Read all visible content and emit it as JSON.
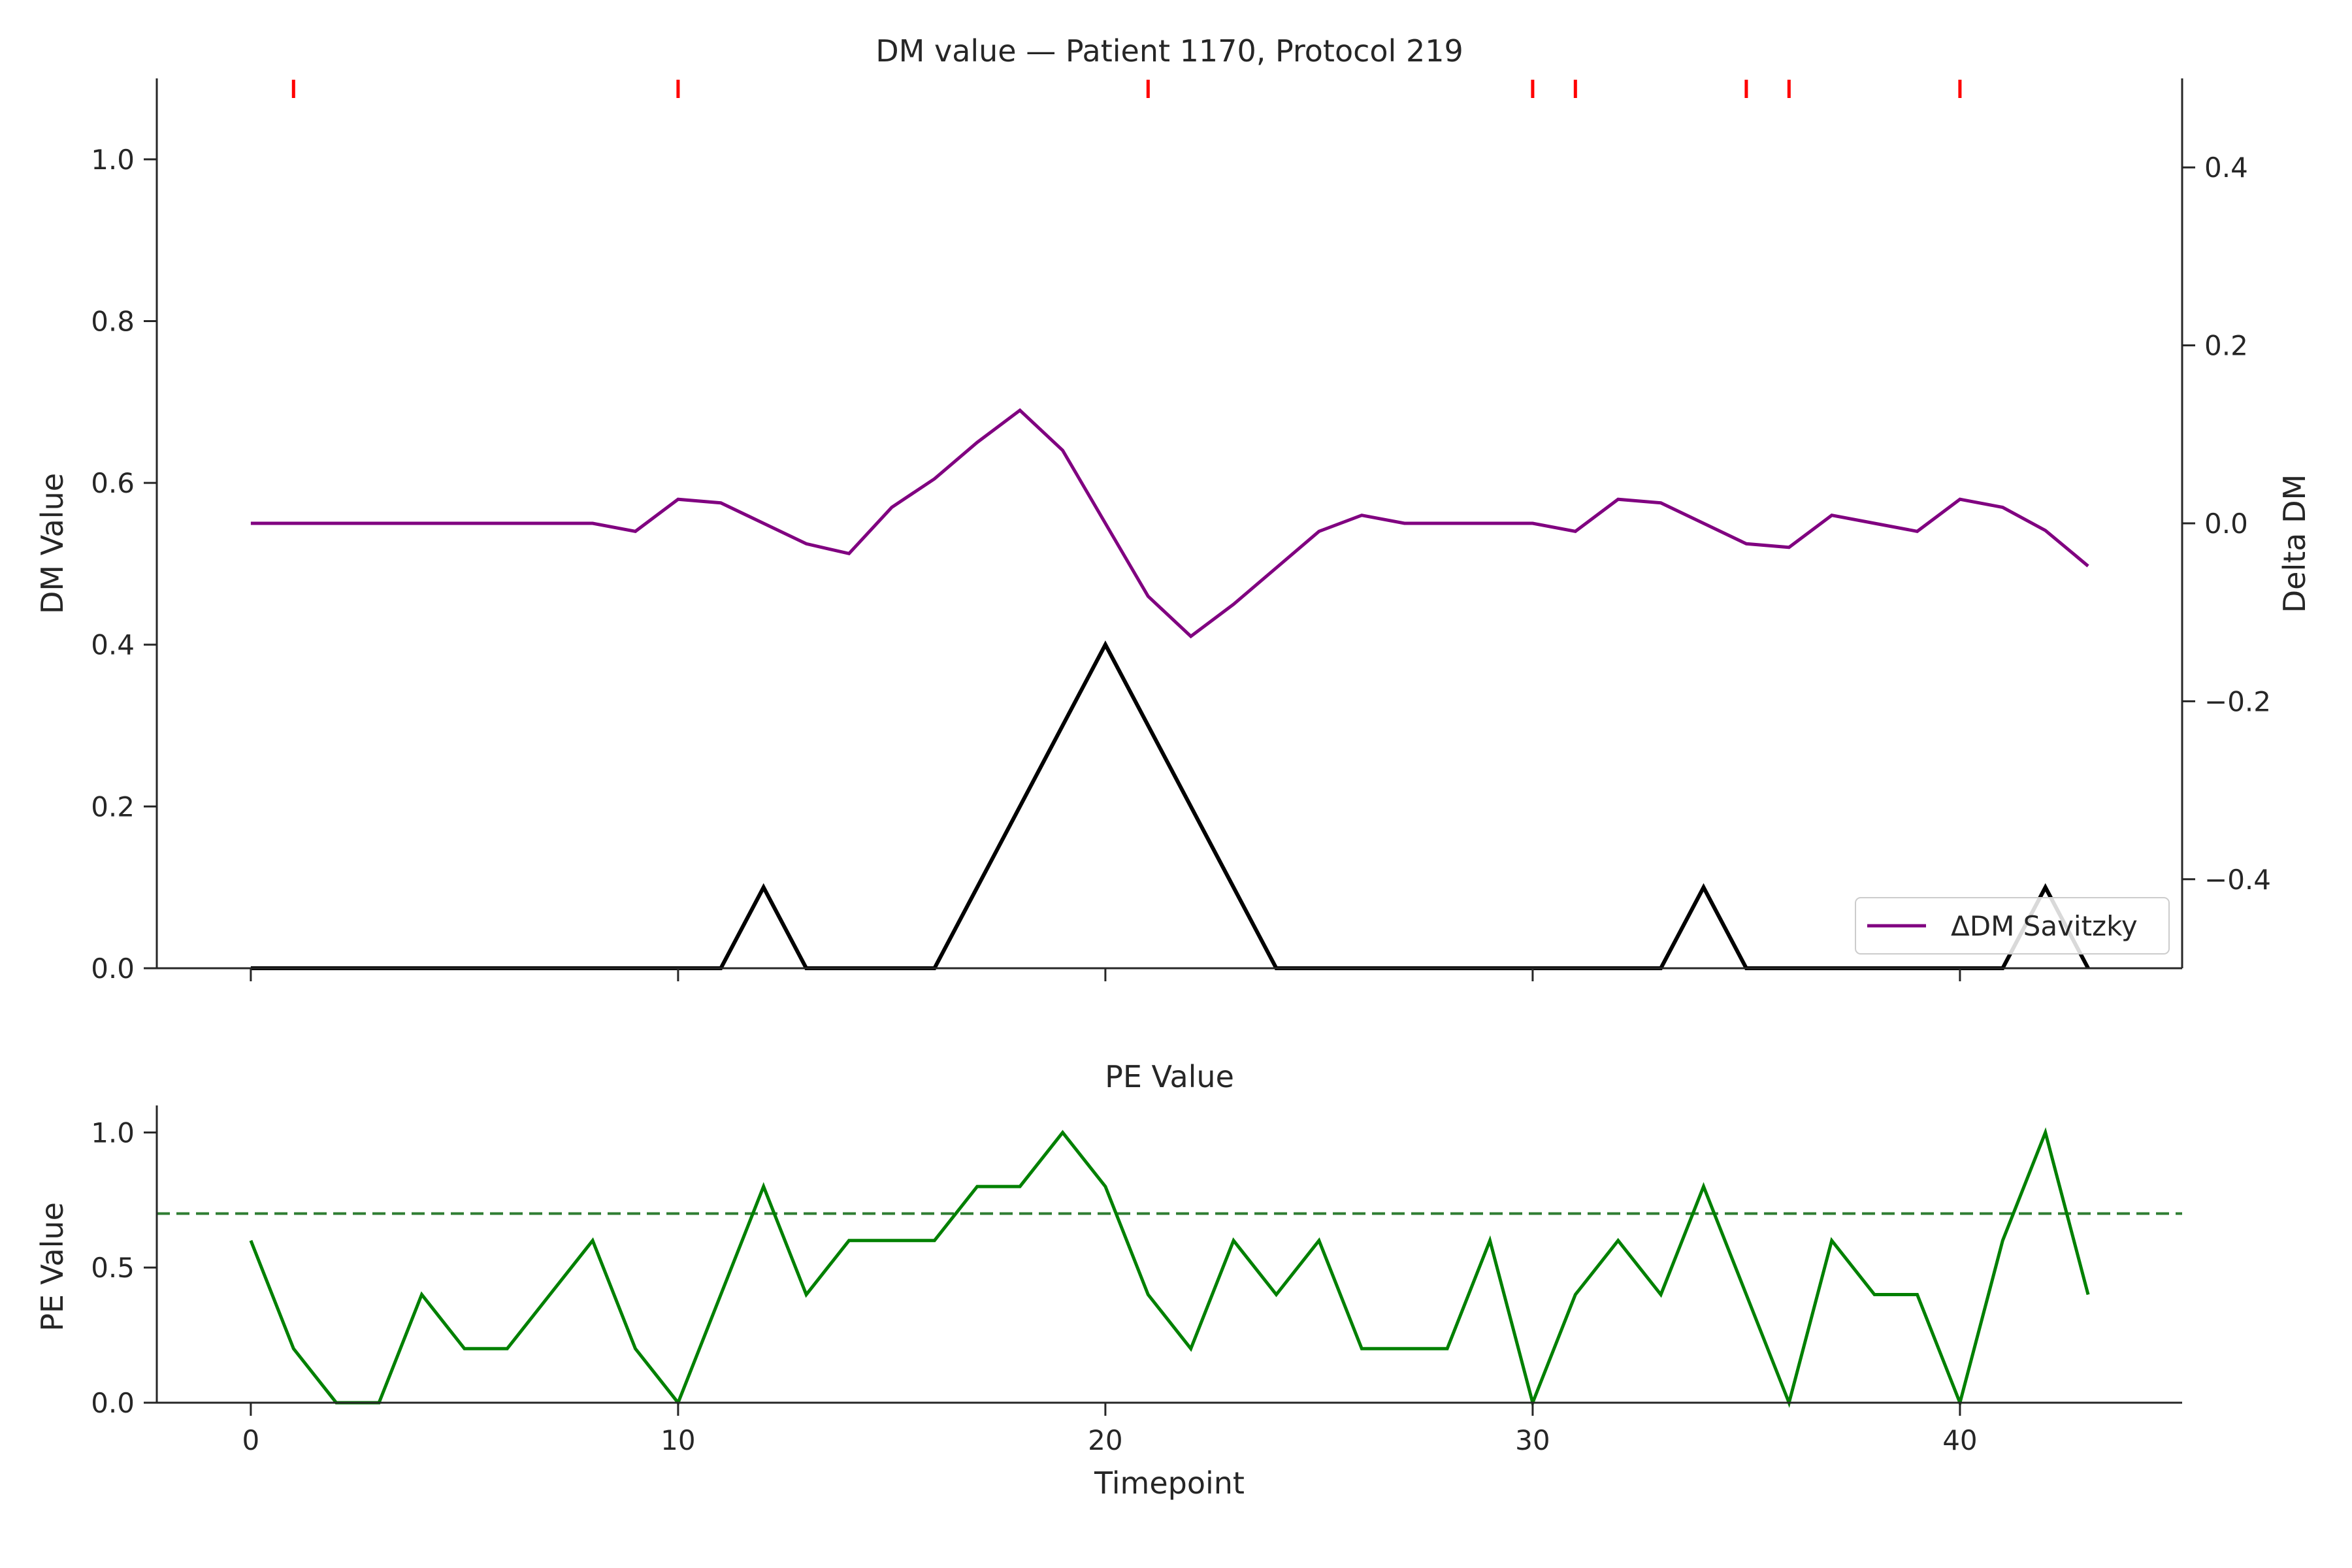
{
  "chart_data": [
    {
      "type": "line",
      "title": "DM value — Patient 1170, Protocol 219",
      "xlabel": "",
      "ylabel": "DM Value",
      "y2label": "Delta DM",
      "xlim": [
        -2.2,
        45.2
      ],
      "ylim": [
        0,
        1.1
      ],
      "y2lim": [
        -0.5,
        0.5
      ],
      "xticks": [
        0,
        10,
        20,
        30,
        40
      ],
      "yticks": [
        0.0,
        0.2,
        0.4,
        0.6,
        0.8,
        1.0
      ],
      "yticklabels": [
        "0.0",
        "0.2",
        "0.4",
        "0.6",
        "0.8",
        "1.0"
      ],
      "y2ticks": [
        -0.4,
        -0.2,
        0.0,
        0.2,
        0.4
      ],
      "y2ticklabels": [
        "−0.4",
        "−0.2",
        "0.0",
        "0.2",
        "0.4"
      ],
      "grid": false,
      "legend_position": "lower-right",
      "event_markers_x": [
        1,
        10,
        21,
        30,
        31,
        35,
        36,
        40
      ],
      "event_marker_color": "#ff0000",
      "series": [
        {
          "axis": "left",
          "color": "#000000",
          "x": [
            0,
            1,
            2,
            3,
            4,
            5,
            6,
            7,
            8,
            9,
            10,
            11,
            12,
            13,
            14,
            15,
            16,
            17,
            18,
            19,
            20,
            21,
            22,
            23,
            24,
            25,
            26,
            27,
            28,
            29,
            30,
            31,
            32,
            33,
            34,
            35,
            36,
            37,
            38,
            39,
            40,
            41,
            42,
            43
          ],
          "values": [
            0,
            0,
            0,
            0,
            0,
            0,
            0,
            0,
            0,
            0,
            0,
            0,
            0.1,
            0,
            0,
            0,
            0,
            0.1,
            0.2,
            0.3,
            0.4,
            0.3,
            0.2,
            0.1,
            0,
            0,
            0,
            0,
            0,
            0,
            0,
            0,
            0,
            0,
            0.1,
            0,
            0,
            0,
            0,
            0,
            0,
            0,
            0.1,
            0
          ]
        },
        {
          "name": "ΔDM Savitzky",
          "axis": "right",
          "color": "#800080",
          "x": [
            0,
            1,
            2,
            3,
            4,
            5,
            6,
            7,
            8,
            9,
            10,
            11,
            12,
            13,
            14,
            15,
            16,
            17,
            18,
            19,
            20,
            21,
            22,
            23,
            24,
            25,
            26,
            27,
            28,
            29,
            30,
            31,
            32,
            33,
            34,
            35,
            36,
            37,
            38,
            39,
            40,
            41,
            42,
            43
          ],
          "values": [
            0,
            0,
            0,
            0,
            0,
            0,
            0,
            0,
            0,
            -0.009,
            0.027,
            0.023,
            0,
            -0.023,
            -0.034,
            0.018,
            0.05,
            0.091,
            0.127,
            0.082,
            0,
            -0.082,
            -0.127,
            -0.091,
            -0.05,
            -0.009,
            0.009,
            0,
            0,
            0,
            0,
            -0.009,
            0.027,
            0.023,
            0,
            -0.023,
            -0.027,
            0.009,
            0,
            -0.009,
            0.027,
            0.018,
            -0.008,
            -0.048
          ]
        }
      ]
    },
    {
      "type": "line",
      "title": "PE Value",
      "xlabel": "Timepoint",
      "ylabel": "PE Value",
      "xlim": [
        -2.2,
        45.2
      ],
      "ylim": [
        0,
        1.1
      ],
      "xticks": [
        0,
        10,
        20,
        30,
        40
      ],
      "yticks": [
        0.0,
        0.5,
        1.0
      ],
      "yticklabels": [
        "0.0",
        "0.5",
        "1.0"
      ],
      "grid": false,
      "threshold": 0.7,
      "threshold_color": "#2e7d32",
      "series": [
        {
          "color": "#008000",
          "x": [
            0,
            1,
            2,
            3,
            4,
            5,
            6,
            7,
            8,
            9,
            10,
            11,
            12,
            13,
            14,
            15,
            16,
            17,
            18,
            19,
            20,
            21,
            22,
            23,
            24,
            25,
            26,
            27,
            28,
            29,
            30,
            31,
            32,
            33,
            34,
            35,
            36,
            37,
            38,
            39,
            40,
            41,
            42,
            43
          ],
          "values": [
            0.6,
            0.2,
            0,
            0,
            0.4,
            0.2,
            0.2,
            0.4,
            0.6,
            0.2,
            0,
            0.4,
            0.8,
            0.4,
            0.6,
            0.6,
            0.6,
            0.8,
            0.8,
            1.0,
            0.8,
            0.4,
            0.2,
            0.6,
            0.4,
            0.6,
            0.2,
            0.2,
            0.2,
            0.6,
            0,
            0.4,
            0.6,
            0.4,
            0.8,
            0.4,
            0,
            0.6,
            0.4,
            0.4,
            0,
            0.6,
            1.0,
            0.4
          ]
        }
      ]
    }
  ]
}
